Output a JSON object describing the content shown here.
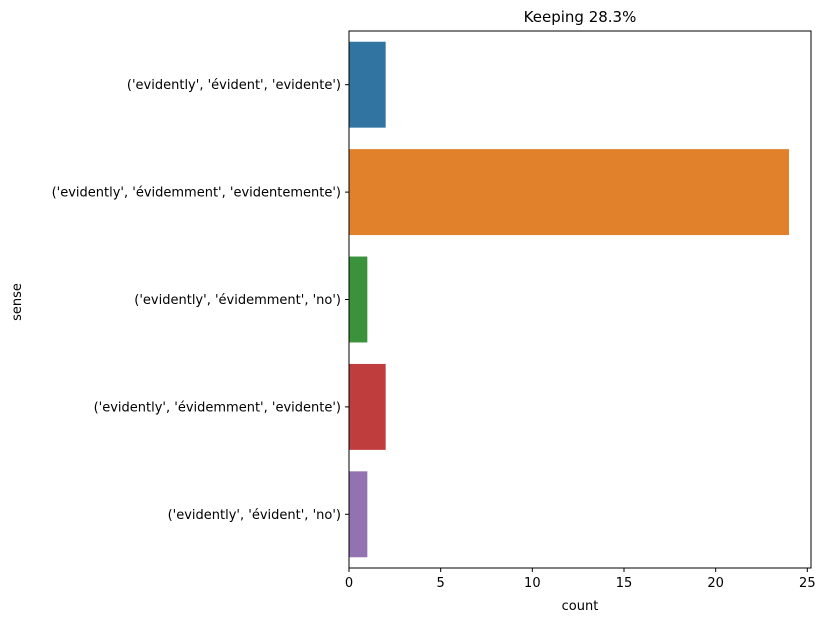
{
  "chart_data": {
    "type": "bar",
    "orientation": "horizontal",
    "title": "Keeping 28.3%",
    "xlabel": "count",
    "ylabel": "sense",
    "xlim": [
      0,
      25.2
    ],
    "xticks": [
      0,
      5,
      10,
      15,
      20,
      25
    ],
    "grid": false,
    "categories": [
      "('evidently', 'évident', 'evidente')",
      "('evidently', 'évidemment', 'evidentemente')",
      "('evidently', 'évidemment', 'no')",
      "('evidently', 'évidemment', 'evidente')",
      "('evidently', 'évident', 'no')"
    ],
    "values": [
      2,
      24,
      1,
      2,
      1
    ],
    "colors": [
      "#3274a1",
      "#e1812c",
      "#3a923a",
      "#c03d3e",
      "#9372b2"
    ]
  }
}
